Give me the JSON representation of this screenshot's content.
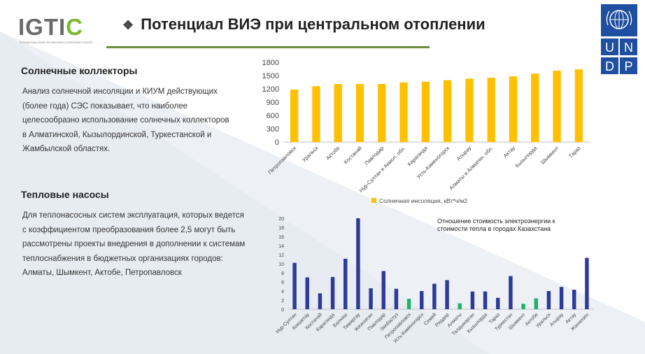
{
  "page": {
    "title": "Потенциал ВИЭ при центральном отоплении",
    "title_bullet": "❖",
    "accent_color": "#6b8e3a"
  },
  "logo": {
    "text": "IGTIC",
    "subtitle": "INTERNATIONAL GREEN TECHNOLOGIES & INVESTMENTS CENTER"
  },
  "partner_logo": {
    "letters": [
      "U",
      "N",
      "D",
      "P"
    ],
    "color": "#1f4fa0"
  },
  "sections": [
    {
      "heading": "Солнечные коллекторы",
      "body": "Анализ солнечной инсоляции и КИУМ действующих (более года) СЭС показывает, что наиболее целесообразно использование солнечных коллекторов в Алматинской, Кызылординской, Туркестанской и Жамбылской областях."
    },
    {
      "heading": "Тепловые насосы",
      "body": "Для теплонасосных систем эксплуатация, которых ведется с коэффициентом преобразования более 2,5 могут быть рассмотрены проекты внедрения в дополнении к системам теплоснабжения в бюджетных организациях городов:",
      "cities": " Алматы, Шымкент, Актобе, Петропавловск"
    }
  ],
  "chart_data": [
    {
      "type": "bar",
      "categories": [
        "Петропавловск",
        "Уральск",
        "Актобе",
        "Костанай",
        "Павлодар",
        "Нур-Султан и Акмол. обл.",
        "Караганда",
        "Усть-Каменогорск",
        "Атырау",
        "Алматы и Алматин. обл.",
        "Актау",
        "Кызылорда",
        "Шымкент",
        "Тараз"
      ],
      "series": [
        {
          "name": "Солнечная инсоляция, кВт*ч/м2",
          "color": "#ffc000",
          "values": [
            1185,
            1260,
            1310,
            1310,
            1310,
            1345,
            1360,
            1395,
            1430,
            1450,
            1480,
            1545,
            1610,
            1640
          ]
        }
      ],
      "yticks": [
        0,
        300,
        600,
        900,
        1200,
        1500,
        1800
      ],
      "ylim": [
        0,
        1800
      ],
      "legend_position": "bottom",
      "title": "",
      "xlabel": "",
      "ylabel": ""
    },
    {
      "type": "bar",
      "title": "Отношение стоимость электроэнергии к стоимости тепла в городах Казахстана",
      "categories": [
        "Нур-Султан",
        "Кокшетау",
        "Костанай",
        "Караганда",
        "Балхаш",
        "Темиртау",
        "Жезказган",
        "Павлодар",
        "Экибастуз",
        "Петропавловск",
        "Усть-Каменогорск",
        "Семей",
        "Риддер",
        "Алматы",
        "Талдыкорган",
        "Кызылорда",
        "Тараз",
        "Туркестан",
        "Шымкент",
        "Актобе",
        "Уральск",
        "Атырау",
        "Актау",
        "Жанаозен"
      ],
      "values": [
        10.2,
        7.0,
        3.5,
        7.1,
        11.1,
        20.0,
        4.6,
        8.4,
        4.5,
        2.3,
        4.0,
        5.6,
        6.4,
        1.3,
        3.9,
        3.9,
        2.5,
        7.3,
        1.2,
        2.4,
        4.0,
        4.9,
        4.3,
        11.3
      ],
      "colors": [
        "#2e3a9a",
        "#2e3a9a",
        "#2e3a9a",
        "#2e3a9a",
        "#2e3a9a",
        "#2e3a9a",
        "#2e3a9a",
        "#2e3a9a",
        "#2e3a9a",
        "#1db36b",
        "#2e3a9a",
        "#2e3a9a",
        "#2e3a9a",
        "#1db36b",
        "#2e3a9a",
        "#2e3a9a",
        "#2e3a9a",
        "#2e3a9a",
        "#1db36b",
        "#1db36b",
        "#2e3a9a",
        "#2e3a9a",
        "#2e3a9a",
        "#2e3a9a"
      ],
      "yticks": [
        0,
        2,
        4,
        6,
        8,
        10,
        12,
        14,
        16,
        18,
        20
      ],
      "ylim": [
        0,
        20
      ],
      "xlabel": "",
      "ylabel": ""
    }
  ]
}
